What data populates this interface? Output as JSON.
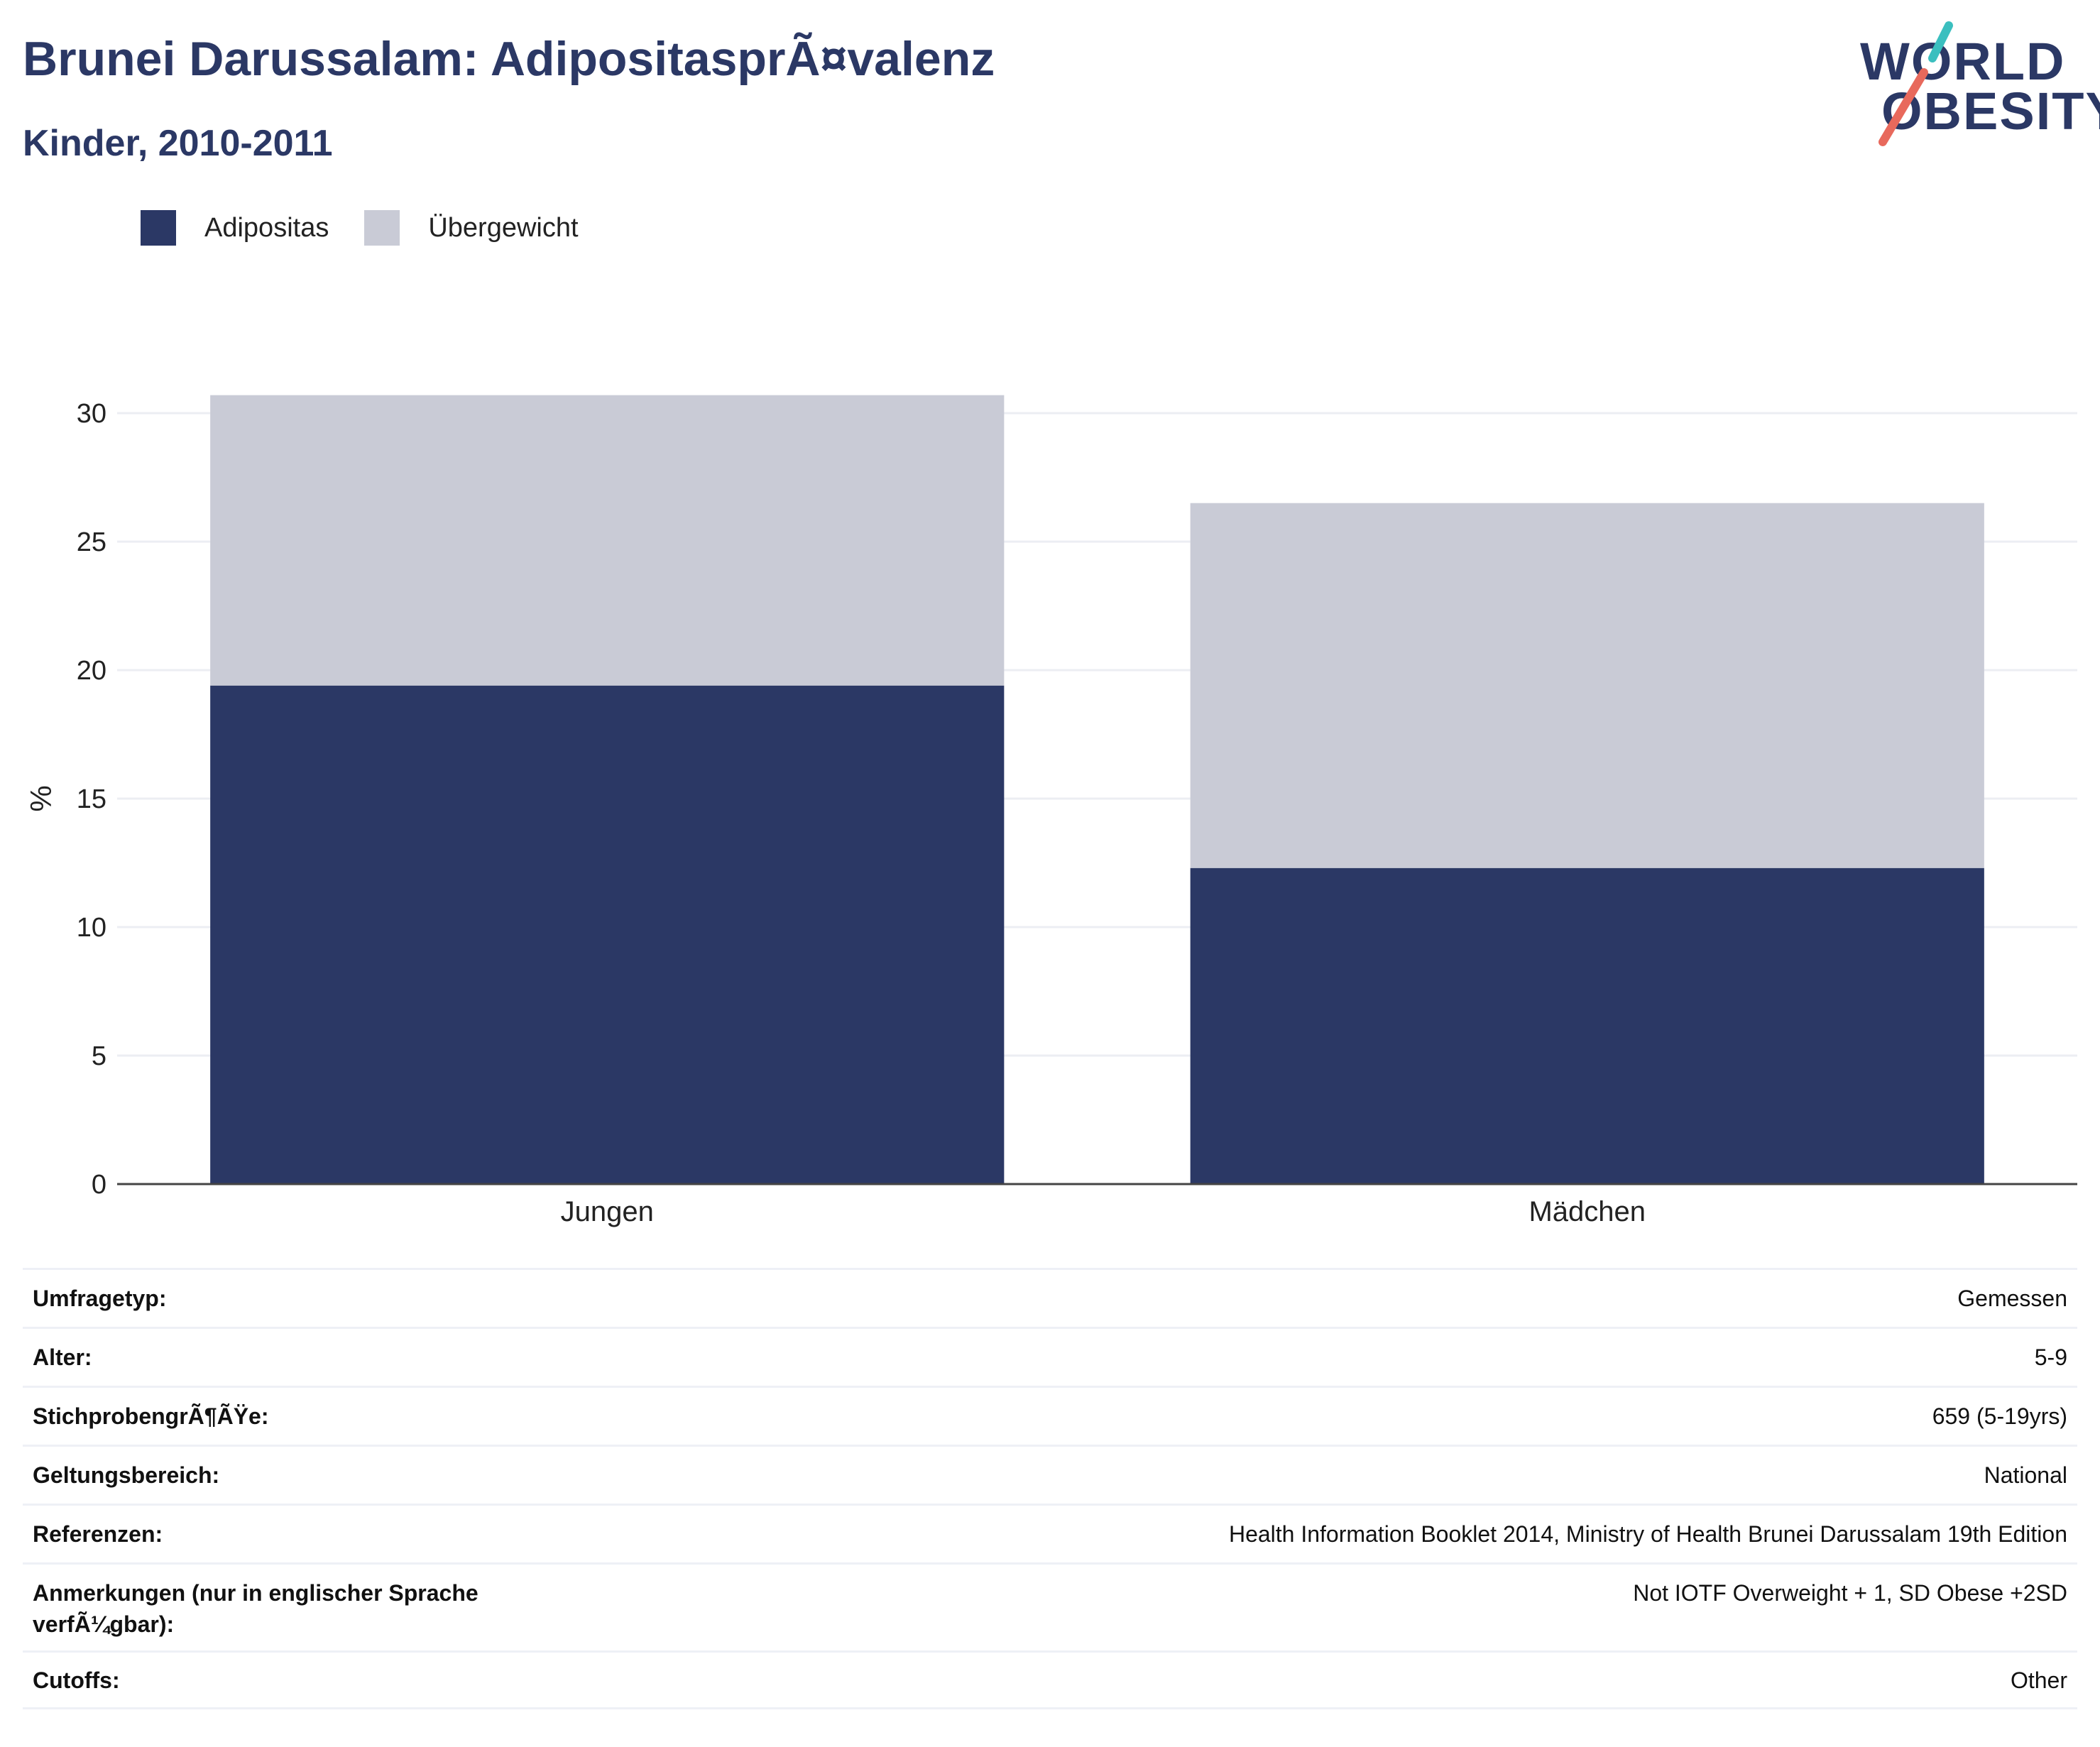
{
  "header": {
    "title": "Brunei Darussalam: AdipositasprÃ¤valenz",
    "subtitle": "Kinder, 2010-2011"
  },
  "logo": {
    "line1": "WORLD",
    "line2": "OBESITY",
    "accent_colors": [
      "#3bbfbf",
      "#e8695c"
    ]
  },
  "legend": [
    {
      "label": "Adipositas",
      "color": "#2b3865"
    },
    {
      "label": "Übergewicht",
      "color": "#c9cbd6"
    }
  ],
  "chart_data": {
    "type": "bar",
    "stacked": true,
    "categories": [
      "Jungen",
      "Mädchen"
    ],
    "series": [
      {
        "name": "Adipositas",
        "values": [
          19.4,
          12.3
        ],
        "color": "#2b3865"
      },
      {
        "name": "Übergewicht",
        "values": [
          11.3,
          14.2
        ],
        "color": "#c9cbd6"
      }
    ],
    "ylabel": "%",
    "ylim": [
      0,
      32
    ],
    "yticks": [
      0,
      5,
      10,
      15,
      20,
      25,
      30
    ],
    "grid": true,
    "legend_position": "top-left"
  },
  "info_table": [
    {
      "key": "Umfragetyp:",
      "value": "Gemessen"
    },
    {
      "key": "Alter:",
      "value": "5-9"
    },
    {
      "key": "StichprobengrÃ¶ÃŸe:",
      "value": "659 (5-19yrs)"
    },
    {
      "key": "Geltungsbereich:",
      "value": "National"
    },
    {
      "key": "Referenzen:",
      "value": "Health Information Booklet 2014, Ministry of Health Brunei Darussalam 19th Edition"
    },
    {
      "key": "Anmerkungen (nur in englischer Sprache verfÃ¼gbar):",
      "value": "Not IOTF Overweight + 1, SD Obese +2SD"
    },
    {
      "key": "Cutoffs:",
      "value": "Other"
    }
  ]
}
